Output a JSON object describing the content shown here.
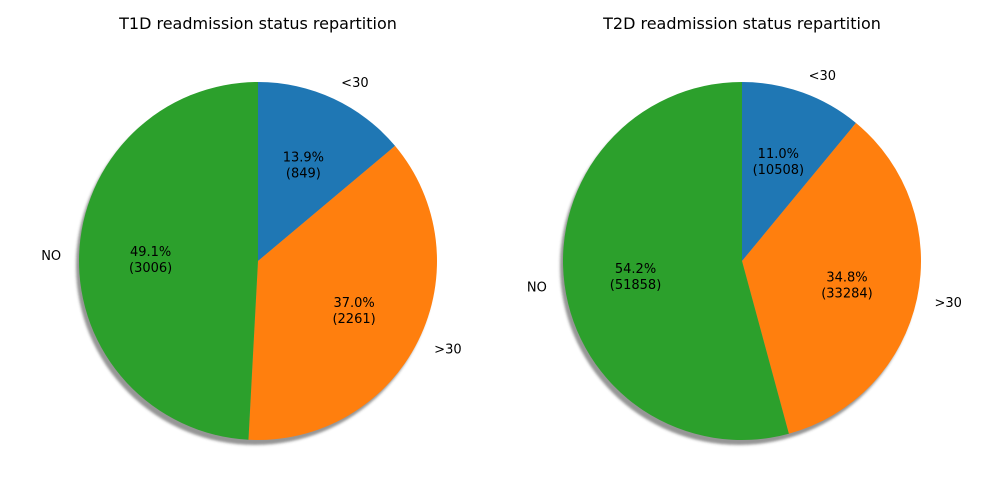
{
  "chart_data": [
    {
      "type": "pie",
      "title": "T1D readmission status repartition",
      "categories": [
        "<30",
        ">30",
        "NO"
      ],
      "values": [
        849,
        2261,
        3006
      ],
      "percent_labels": [
        "13.9%",
        "37.0%",
        "49.1%"
      ],
      "count_labels": [
        "(849)",
        "(2261)",
        "(3006)"
      ],
      "colors": [
        "#1f77b4",
        "#ff7f0e",
        "#2ca02c"
      ],
      "start_angle_deg": 90,
      "direction": "clockwise",
      "shadow": true
    },
    {
      "type": "pie",
      "title": "T2D readmission status repartition",
      "categories": [
        "<30",
        ">30",
        "NO"
      ],
      "values": [
        10508,
        33284,
        51858
      ],
      "percent_labels": [
        "11.0%",
        "34.8%",
        "54.2%"
      ],
      "count_labels": [
        "(10508)",
        "(33284)",
        "(51858)"
      ],
      "colors": [
        "#1f77b4",
        "#ff7f0e",
        "#2ca02c"
      ],
      "start_angle_deg": 90,
      "direction": "clockwise",
      "shadow": true
    }
  ]
}
